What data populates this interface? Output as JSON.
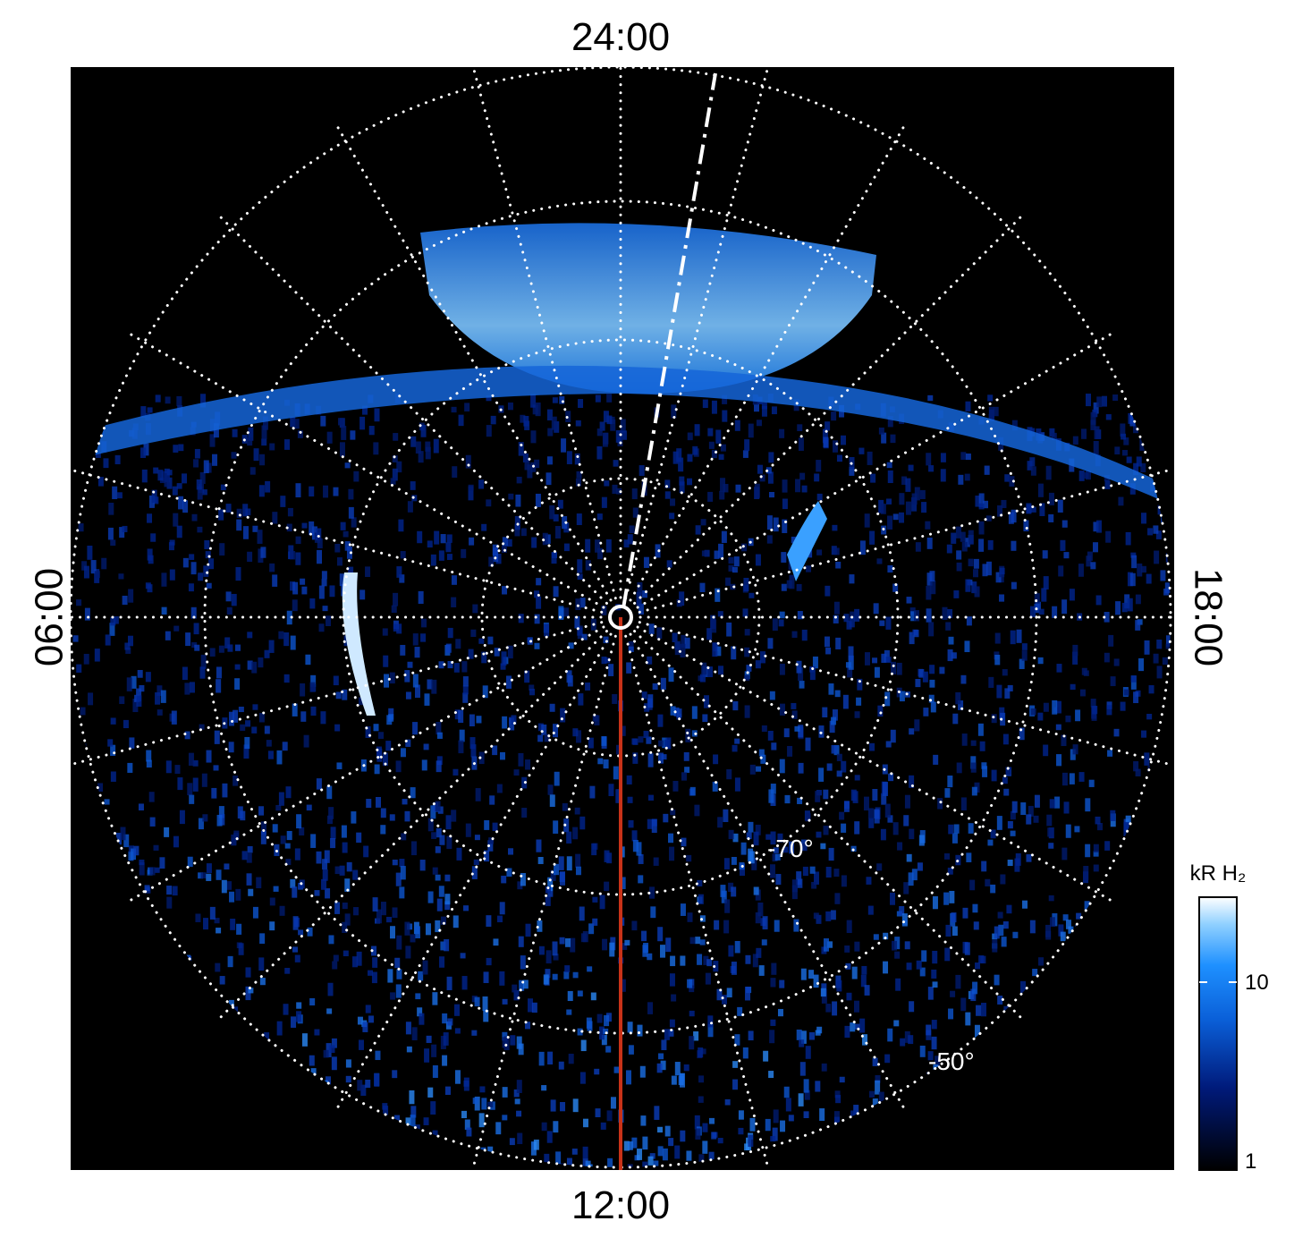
{
  "local_time_labels": {
    "top": "24:00",
    "bottom": "12:00",
    "left": "06:00",
    "right": "18:00"
  },
  "latitude_labels": [
    "-70°",
    "-50°"
  ],
  "colorbar": {
    "label": "kR H₂",
    "ticks": [
      "10",
      "1"
    ]
  }
}
